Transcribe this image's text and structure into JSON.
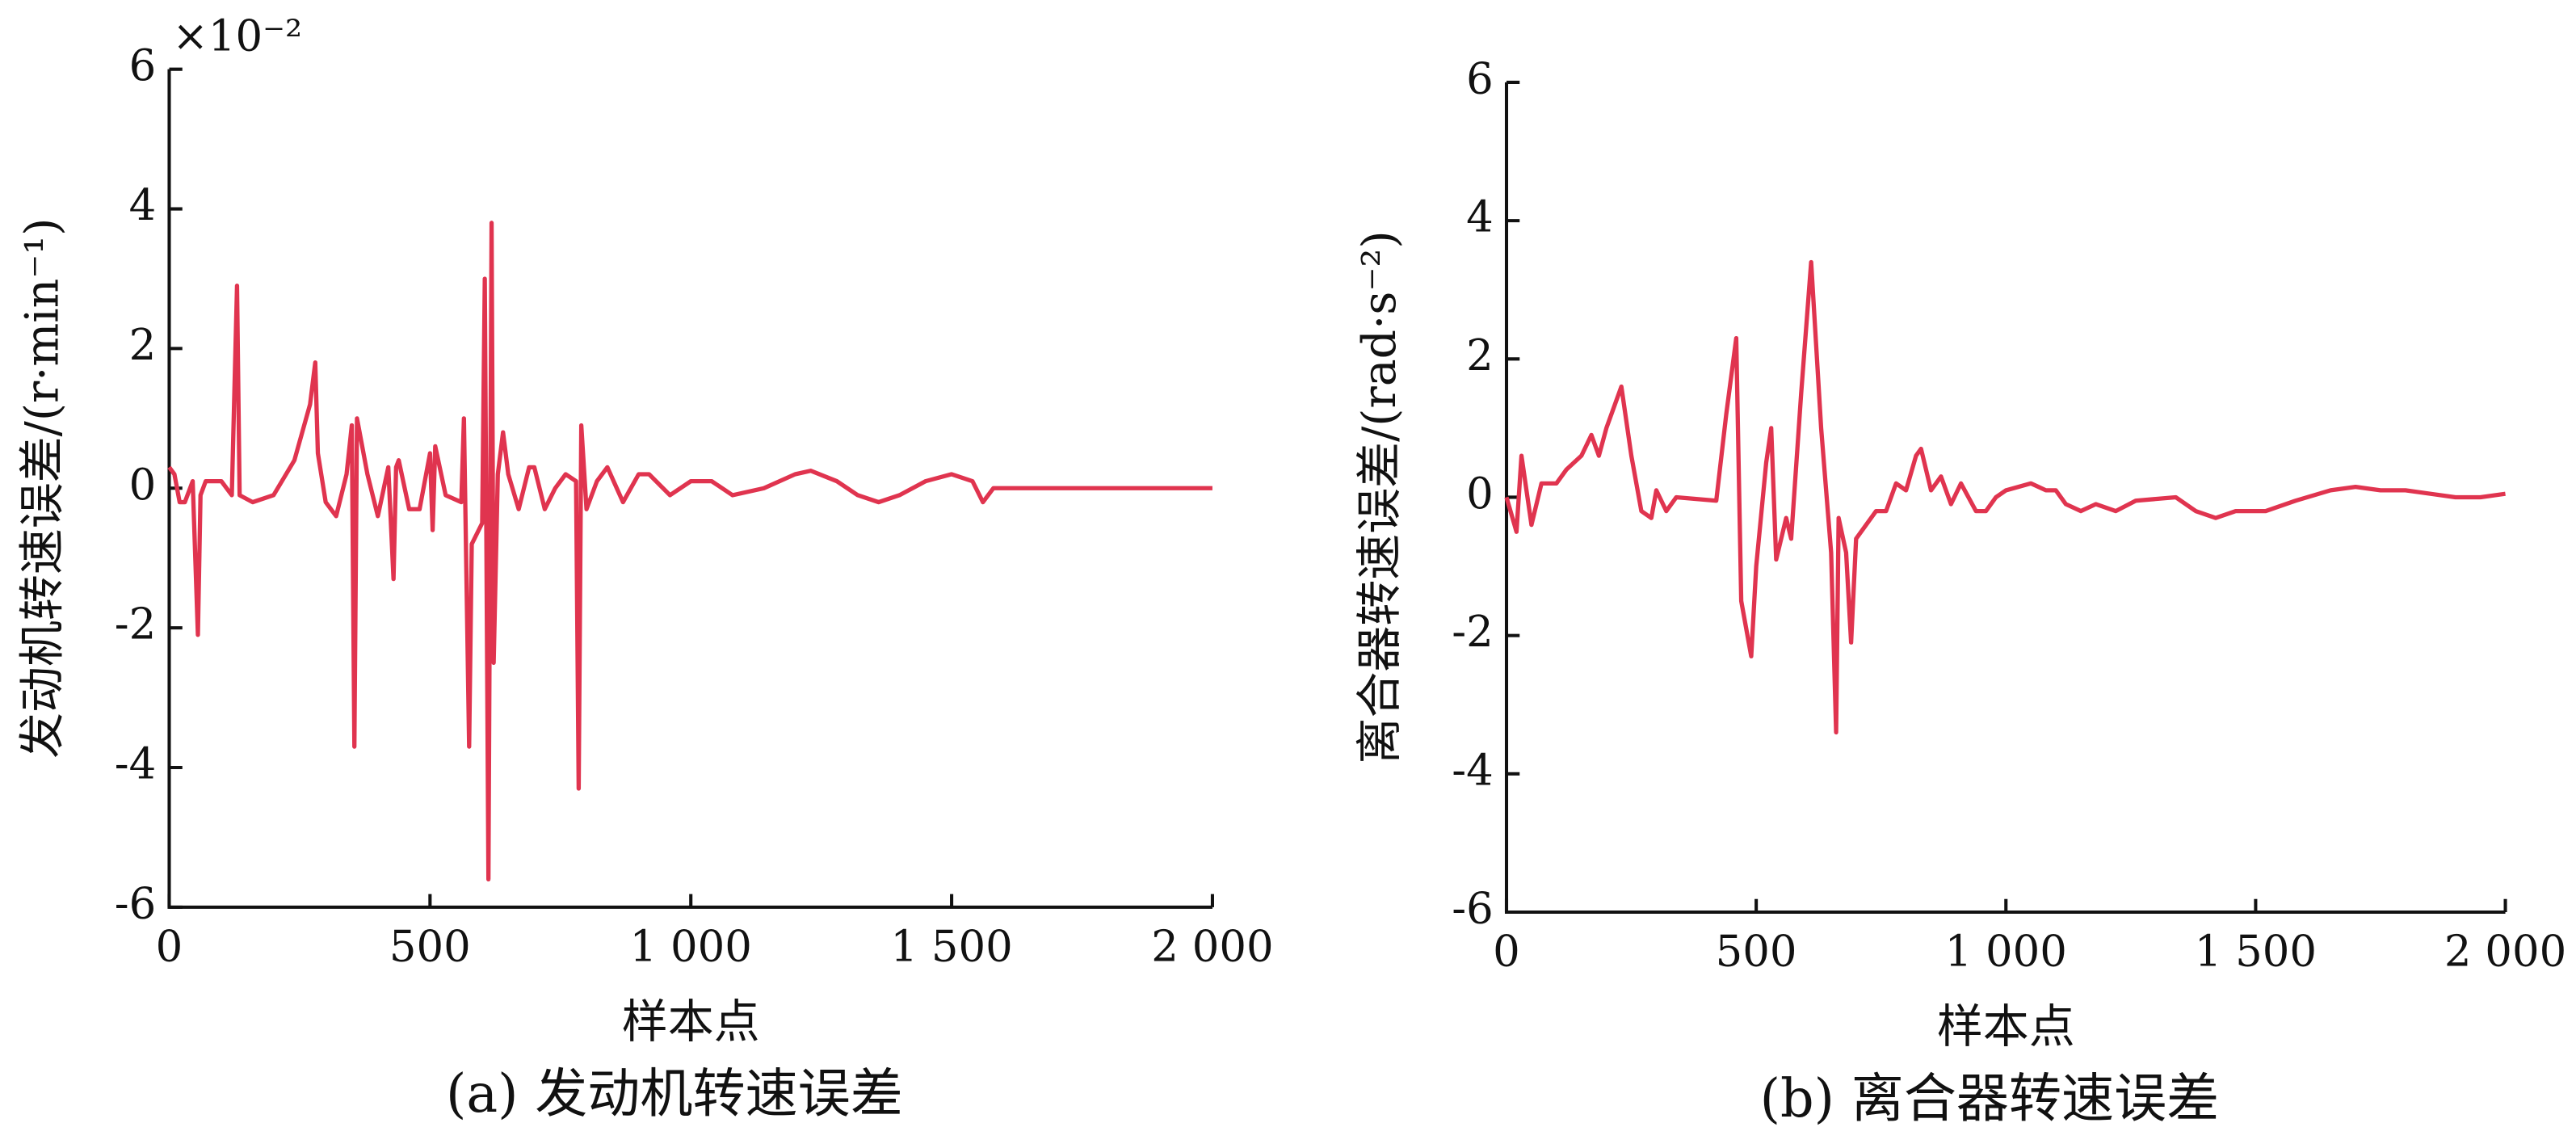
{
  "chart_data": [
    {
      "type": "line",
      "caption": "(a) 发动机转速误差",
      "multiplier": "×10⁻²",
      "xlabel": "样本点",
      "ylabel": "发动机转速误差/(r·min⁻¹)",
      "xlim": [
        0,
        2000
      ],
      "ylim": [
        -6,
        6
      ],
      "xticks": [
        0,
        500,
        {
          "value": 1000,
          "label": "1 000"
        },
        {
          "value": 1500,
          "label": "1 500"
        },
        {
          "value": 2000,
          "label": "2 000"
        }
      ],
      "yticks": [
        -6,
        -4,
        -2,
        0,
        2,
        4,
        6
      ],
      "x": [
        0,
        10,
        20,
        30,
        45,
        55,
        60,
        70,
        100,
        120,
        130,
        135,
        160,
        200,
        240,
        270,
        280,
        285,
        300,
        320,
        340,
        350,
        355,
        360,
        380,
        400,
        420,
        430,
        435,
        440,
        460,
        480,
        500,
        505,
        510,
        530,
        560,
        565,
        575,
        580,
        600,
        605,
        612,
        618,
        622,
        630,
        640,
        650,
        670,
        690,
        700,
        720,
        740,
        760,
        780,
        785,
        790,
        800,
        820,
        840,
        870,
        900,
        920,
        960,
        1000,
        1040,
        1080,
        1140,
        1200,
        1230,
        1280,
        1320,
        1360,
        1400,
        1450,
        1500,
        1540,
        1560,
        1580,
        2000
      ],
      "series": [
        {
          "color": "#e0344f",
          "values": [
            0.3,
            0.2,
            -0.2,
            -0.2,
            0.1,
            -2.1,
            -0.1,
            0.1,
            0.1,
            -0.1,
            2.9,
            -0.1,
            -0.2,
            -0.1,
            0.4,
            1.2,
            1.8,
            0.5,
            -0.2,
            -0.4,
            0.2,
            0.9,
            -3.7,
            1.0,
            0.2,
            -0.4,
            0.3,
            -1.3,
            0.3,
            0.4,
            -0.3,
            -0.3,
            0.5,
            -0.6,
            0.6,
            -0.1,
            -0.2,
            1.0,
            -3.7,
            -0.8,
            -0.5,
            3.0,
            -5.6,
            3.8,
            -2.5,
            0.2,
            0.8,
            0.2,
            -0.3,
            0.3,
            0.3,
            -0.3,
            0.0,
            0.2,
            0.1,
            -4.3,
            0.9,
            -0.3,
            0.1,
            0.3,
            -0.2,
            0.2,
            0.2,
            -0.1,
            0.1,
            0.1,
            -0.1,
            0.0,
            0.2,
            0.25,
            0.1,
            -0.1,
            -0.2,
            -0.1,
            0.1,
            0.2,
            0.1,
            -0.2,
            0.0,
            0.0
          ]
        }
      ]
    },
    {
      "type": "line",
      "caption": "(b) 离合器转速误差",
      "xlabel": "样本点",
      "ylabel": "离合器转速误差/(rad·s⁻²)",
      "xlim": [
        0,
        2000
      ],
      "ylim": [
        -6,
        6
      ],
      "xticks": [
        0,
        500,
        {
          "value": 1000,
          "label": "1 000"
        },
        {
          "value": 1500,
          "label": "1 500"
        },
        {
          "value": 2000,
          "label": "2 000"
        }
      ],
      "yticks": [
        -6,
        -4,
        -2,
        0,
        2,
        4,
        6
      ],
      "x": [
        0,
        20,
        30,
        50,
        70,
        100,
        120,
        150,
        170,
        185,
        200,
        230,
        250,
        270,
        290,
        300,
        320,
        340,
        420,
        440,
        460,
        470,
        490,
        500,
        520,
        530,
        540,
        560,
        570,
        590,
        610,
        630,
        650,
        660,
        665,
        680,
        690,
        700,
        720,
        740,
        760,
        780,
        800,
        820,
        830,
        850,
        870,
        890,
        910,
        940,
        960,
        980,
        1000,
        1050,
        1080,
        1100,
        1120,
        1150,
        1180,
        1220,
        1260,
        1340,
        1380,
        1420,
        1460,
        1520,
        1580,
        1650,
        1700,
        1750,
        1800,
        1850,
        1900,
        1950,
        2000
      ],
      "series": [
        {
          "color": "#e0344f",
          "values": [
            0,
            -0.5,
            0.6,
            -0.4,
            0.2,
            0.2,
            0.4,
            0.6,
            0.9,
            0.6,
            1.0,
            1.6,
            0.6,
            -0.2,
            -0.3,
            0.1,
            -0.2,
            0.0,
            -0.05,
            1.2,
            2.3,
            -1.5,
            -2.3,
            -1.0,
            0.5,
            1.0,
            -0.9,
            -0.3,
            -0.6,
            1.5,
            3.4,
            1.0,
            -0.8,
            -3.4,
            -0.3,
            -0.8,
            -2.1,
            -0.6,
            -0.4,
            -0.2,
            -0.2,
            0.2,
            0.1,
            0.6,
            0.7,
            0.1,
            0.3,
            -0.1,
            0.2,
            -0.2,
            -0.2,
            0.0,
            0.1,
            0.2,
            0.1,
            0.1,
            -0.1,
            -0.2,
            -0.1,
            -0.2,
            -0.05,
            0.0,
            -0.2,
            -0.3,
            -0.2,
            -0.2,
            -0.05,
            0.1,
            0.15,
            0.1,
            0.1,
            0.05,
            0.0,
            0.0,
            0.05
          ]
        }
      ]
    }
  ]
}
